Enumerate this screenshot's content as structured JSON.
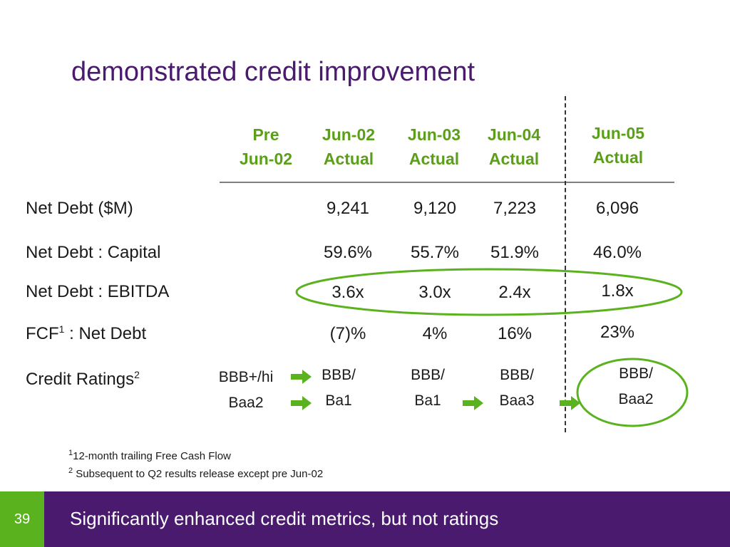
{
  "title": "demonstrated credit improvement",
  "columns": [
    {
      "line1": "Pre",
      "line2": "Jun-02"
    },
    {
      "line1": "Jun-02",
      "line2": "Actual"
    },
    {
      "line1": "Jun-03",
      "line2": "Actual"
    },
    {
      "line1": "Jun-04",
      "line2": "Actual"
    },
    {
      "line1": "Jun-05",
      "line2": "Actual"
    }
  ],
  "rows": {
    "net_debt": {
      "label": "Net Debt ($M)",
      "values": [
        "9,241",
        "9,120",
        "7,223",
        "6,096"
      ]
    },
    "net_debt_capital": {
      "label": "Net Debt : Capital",
      "values": [
        "59.6%",
        "55.7%",
        "51.9%",
        "46.0%"
      ]
    },
    "net_debt_ebitda": {
      "label": "Net Debt : EBITDA",
      "values": [
        "3.6x",
        "3.0x",
        "2.4x",
        "1.8x"
      ]
    },
    "fcf_net_debt": {
      "label_main": "FCF",
      "label_sup": "1",
      "label_rest": " : Net Debt",
      "values": [
        "(7)%",
        "4%",
        "16%",
        "23%"
      ]
    },
    "credit_ratings": {
      "label_main": "Credit Ratings",
      "label_sup": "2",
      "ratings": [
        {
          "line1": "BBB+/hi",
          "line2": "Baa2"
        },
        {
          "line1": "BBB/",
          "line2": "Ba1"
        },
        {
          "line1": "BBB/",
          "line2": "Ba1"
        },
        {
          "line1": "BBB/",
          "line2": "Baa3"
        },
        {
          "line1": "BBB/",
          "line2": "Baa2"
        }
      ]
    }
  },
  "footnotes": [
    {
      "sup": "1",
      "text": "12-month trailing Free Cash Flow"
    },
    {
      "sup": "2",
      "text": " Subsequent to Q2 results release except pre Jun-02"
    }
  ],
  "footer": {
    "page_number": "39",
    "text": "Significantly enhanced credit metrics, but not ratings"
  },
  "colors": {
    "accent_purple": "#4a1a6e",
    "accent_green": "#5ab21e"
  }
}
